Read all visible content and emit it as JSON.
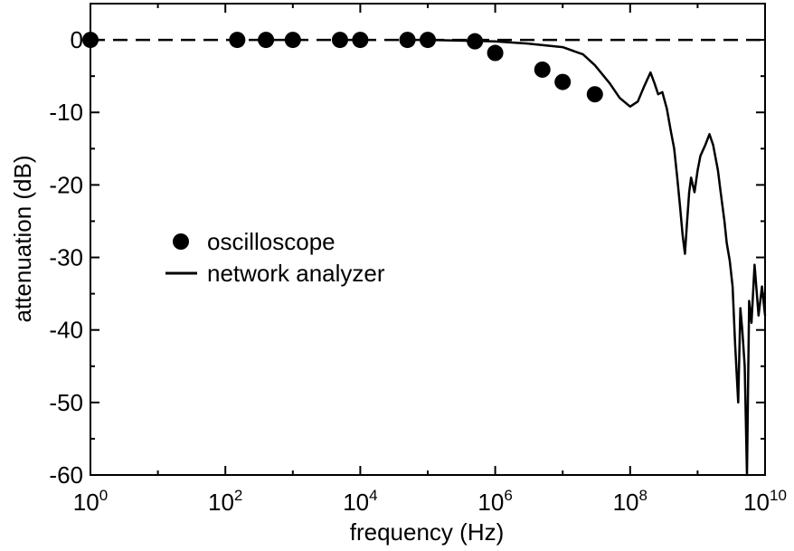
{
  "chart_data": {
    "type": "scatter",
    "title": "",
    "xlabel": "frequency (Hz)",
    "ylabel": "attenuation (dB)",
    "x_scale": "log",
    "xlim": [
      1,
      10000000000
    ],
    "ylim": [
      -60,
      5
    ],
    "x_ticks": [
      {
        "base": "10",
        "exp": "0",
        "value": 1
      },
      {
        "base": "10",
        "exp": "2",
        "value": 100
      },
      {
        "base": "10",
        "exp": "4",
        "value": 10000
      },
      {
        "base": "10",
        "exp": "6",
        "value": 1000000
      },
      {
        "base": "10",
        "exp": "8",
        "value": 100000000
      },
      {
        "base": "10",
        "exp": "10",
        "value": 10000000000
      }
    ],
    "y_ticks": [
      "0",
      "-10",
      "-20",
      "-30",
      "-40",
      "-50",
      "-60"
    ],
    "y_tick_values": [
      0,
      -10,
      -20,
      -30,
      -40,
      -50,
      -60
    ],
    "reference_line": {
      "y": 0,
      "style": "dashed"
    },
    "grid": false,
    "legend": {
      "placement": "center-left"
    },
    "series": [
      {
        "name": "oscilloscope",
        "marker": "filled-circle",
        "color": "#000000",
        "x": [
          1,
          150,
          400,
          1000,
          5000,
          10000,
          50000,
          100000,
          500000,
          1000000,
          5000000,
          10000000,
          30000000
        ],
        "y": [
          0,
          0,
          0,
          0,
          0,
          0,
          0,
          0,
          -0.2,
          -1.8,
          -4.1,
          -5.8,
          -7.5
        ]
      },
      {
        "name": "network analyzer",
        "marker": "line",
        "color": "#000000",
        "x": [
          100000,
          300000,
          1000000,
          3000000,
          10000000,
          20000000,
          30000000,
          50000000,
          70000000,
          100000000,
          130000000,
          160000000,
          200000000,
          230000000,
          260000000,
          300000000,
          350000000,
          400000000,
          450000000,
          500000000,
          550000000,
          600000000,
          650000000,
          700000000,
          750000000,
          800000000,
          900000000,
          1000000000,
          1100000000,
          1300000000,
          1500000000,
          1700000000,
          2000000000,
          2200000000,
          2500000000,
          2700000000,
          3000000000,
          3300000000,
          3600000000,
          4000000000,
          4300000000,
          4600000000,
          5000000000,
          5400000000,
          5800000000,
          6300000000,
          7000000000,
          8000000000,
          9000000000,
          10000000000
        ],
        "y": [
          0,
          -0.1,
          -0.2,
          -0.5,
          -1.0,
          -2.0,
          -3.5,
          -6.0,
          -8.0,
          -9.2,
          -8.5,
          -6.5,
          -4.5,
          -6.0,
          -7.5,
          -7.2,
          -9.5,
          -12.5,
          -15.0,
          -19.0,
          -23.0,
          -27.0,
          -29.5,
          -25.0,
          -21.0,
          -19.0,
          -21.0,
          -18.0,
          -16.0,
          -14.5,
          -13.0,
          -14.5,
          -18.0,
          -21.0,
          -25.0,
          -28.0,
          -30.5,
          -34.0,
          -42.0,
          -50.0,
          -37.0,
          -40.0,
          -45.0,
          -60.0,
          -36.0,
          -39.0,
          -31.0,
          -38.0,
          -34.0,
          -38.0
        ]
      }
    ]
  }
}
